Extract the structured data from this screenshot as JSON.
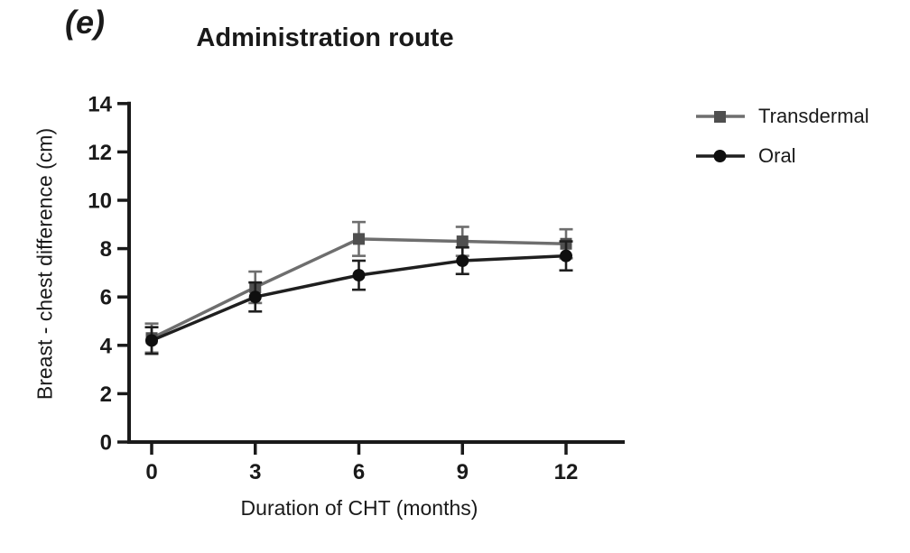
{
  "panel_label": "(e)",
  "chart_data": {
    "type": "line",
    "title": "Administration route",
    "xlabel": "Duration of CHT (months)",
    "ylabel": "Breast - chest difference (cm)",
    "x": [
      0,
      3,
      6,
      9,
      12
    ],
    "xticks": [
      0,
      3,
      6,
      9,
      12
    ],
    "yticks": [
      0,
      2,
      4,
      6,
      8,
      10,
      12,
      14
    ],
    "xlim": [
      -0.7,
      13.7
    ],
    "ylim": [
      0,
      14
    ],
    "grid": false,
    "legend_position": "right",
    "axis_color": "#1a1a1a",
    "text_color": "#1a1a1a",
    "background_color": "#ffffff",
    "series": [
      {
        "name": "Transdermal",
        "marker": "square",
        "line_color": "#6e6e6e",
        "marker_color": "#4f4f4f",
        "values": [
          4.3,
          6.4,
          8.4,
          8.3,
          8.2
        ],
        "errors": [
          0.6,
          0.65,
          0.7,
          0.6,
          0.6
        ]
      },
      {
        "name": "Oral",
        "marker": "circle",
        "line_color": "#1f1f1f",
        "marker_color": "#0f0f0f",
        "values": [
          4.2,
          6.0,
          6.9,
          7.5,
          7.7
        ],
        "errors": [
          0.55,
          0.6,
          0.6,
          0.55,
          0.6
        ]
      }
    ]
  }
}
